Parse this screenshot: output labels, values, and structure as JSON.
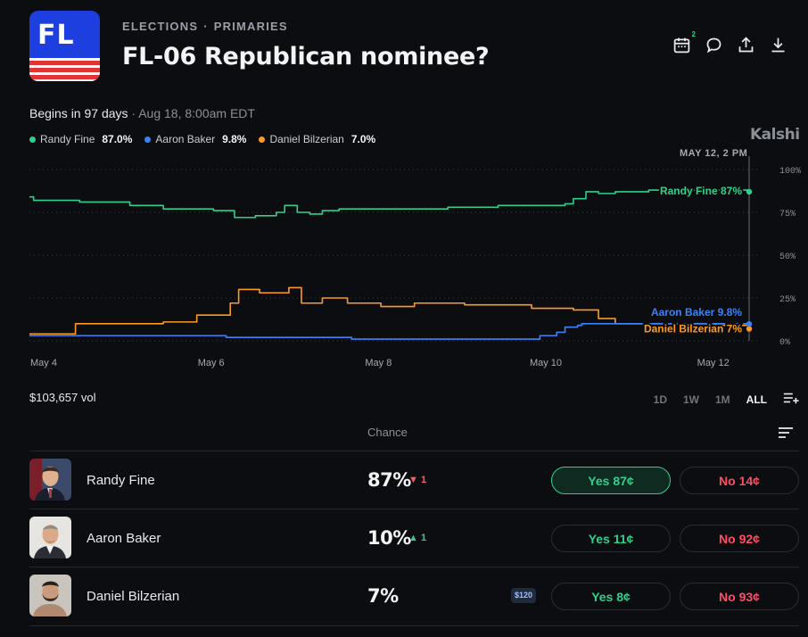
{
  "header": {
    "logo_text": "FL",
    "breadcrumb": [
      "ELECTIONS",
      "PRIMARIES"
    ],
    "breadcrumb_sep": "·",
    "title": "FL-06 Republican nominee?",
    "calendar_badge": "2"
  },
  "event": {
    "begins": "Begins in 97 days",
    "sep": " · ",
    "date": "Aug 18, 8:00am EDT"
  },
  "legend": [
    {
      "name": "Randy Fine",
      "value": "87.0%",
      "color": "#2fd08e"
    },
    {
      "name": "Aaron Baker",
      "value": "9.8%",
      "color": "#3b82f6"
    },
    {
      "name": "Daniel Bilzerian",
      "value": "7.0%",
      "color": "#ff9a1f"
    }
  ],
  "brand": "Kalshi",
  "timestamp_label": "MAY 12, 2 PM",
  "chart_data": {
    "type": "line",
    "x_ticks": [
      "May 4",
      "May 6",
      "May 8",
      "May 10",
      "May 12"
    ],
    "y_ticks": [
      "100%",
      "75%",
      "50%",
      "25%",
      "0%"
    ],
    "ylim": [
      0,
      100
    ],
    "xlim": [
      4,
      12.6
    ],
    "grid": true,
    "series": [
      {
        "name": "Randy Fine",
        "color": "#2fd08e",
        "end_label": "Randy Fine 87%",
        "points": [
          [
            4,
            84
          ],
          [
            4.05,
            82
          ],
          [
            4.6,
            81
          ],
          [
            5.2,
            79
          ],
          [
            5.6,
            77
          ],
          [
            6.2,
            76
          ],
          [
            6.45,
            72
          ],
          [
            6.7,
            73
          ],
          [
            6.95,
            75
          ],
          [
            7.05,
            79
          ],
          [
            7.2,
            75
          ],
          [
            7.35,
            74
          ],
          [
            7.5,
            76
          ],
          [
            7.7,
            77
          ],
          [
            8.2,
            77
          ],
          [
            9,
            78
          ],
          [
            9.6,
            79
          ],
          [
            10.4,
            80
          ],
          [
            10.5,
            83
          ],
          [
            10.65,
            87
          ],
          [
            10.8,
            86
          ],
          [
            11,
            87
          ],
          [
            11.4,
            88
          ],
          [
            12,
            88
          ],
          [
            12.4,
            88
          ],
          [
            12.6,
            87
          ]
        ]
      },
      {
        "name": "Daniel Bilzerian",
        "color": "#ff9a1f",
        "end_label": "Daniel Bilzerian 7%",
        "points": [
          [
            4,
            4
          ],
          [
            4.5,
            4
          ],
          [
            4.55,
            10
          ],
          [
            5.2,
            10
          ],
          [
            5.6,
            11
          ],
          [
            6,
            15
          ],
          [
            6.3,
            15
          ],
          [
            6.4,
            22
          ],
          [
            6.5,
            30
          ],
          [
            6.75,
            28
          ],
          [
            7.1,
            31
          ],
          [
            7.25,
            22
          ],
          [
            7.5,
            25
          ],
          [
            7.8,
            22
          ],
          [
            8.2,
            20
          ],
          [
            8.6,
            22
          ],
          [
            9.2,
            21
          ],
          [
            10,
            19
          ],
          [
            10.5,
            18
          ],
          [
            10.8,
            13
          ],
          [
            11.0,
            10
          ],
          [
            11.5,
            10
          ],
          [
            12.2,
            9
          ],
          [
            12.6,
            7
          ]
        ]
      },
      {
        "name": "Aaron Baker",
        "color": "#3b82f6",
        "end_label": "Aaron Baker 9.8%",
        "points": [
          [
            4,
            3
          ],
          [
            6.3,
            3
          ],
          [
            6.35,
            2
          ],
          [
            7.8,
            2
          ],
          [
            7.85,
            1
          ],
          [
            10.0,
            1
          ],
          [
            10.1,
            3
          ],
          [
            10.3,
            5
          ],
          [
            10.4,
            8
          ],
          [
            10.55,
            9
          ],
          [
            10.6,
            10
          ],
          [
            11,
            10
          ],
          [
            12,
            10
          ],
          [
            12.6,
            9.8
          ]
        ]
      }
    ]
  },
  "volume": "$103,657 vol",
  "ranges": [
    {
      "label": "1D",
      "active": false
    },
    {
      "label": "1W",
      "active": false
    },
    {
      "label": "1M",
      "active": false
    },
    {
      "label": "ALL",
      "active": true
    }
  ],
  "table": {
    "chance_header": "Chance",
    "rows": [
      {
        "name": "Randy Fine",
        "chance": "87%",
        "delta": "▼ 1",
        "delta_dir": "down",
        "badge": "",
        "yes": "Yes 87¢",
        "no": "No 14¢",
        "selected": true
      },
      {
        "name": "Aaron Baker",
        "chance": "10%",
        "delta": "▲ 1",
        "delta_dir": "up",
        "badge": "",
        "yes": "Yes 11¢",
        "no": "No 92¢",
        "selected": false
      },
      {
        "name": "Daniel Bilzerian",
        "chance": "7%",
        "delta": "",
        "delta_dir": "",
        "badge": "$120",
        "yes": "Yes 8¢",
        "no": "No 93¢",
        "selected": false
      }
    ]
  }
}
